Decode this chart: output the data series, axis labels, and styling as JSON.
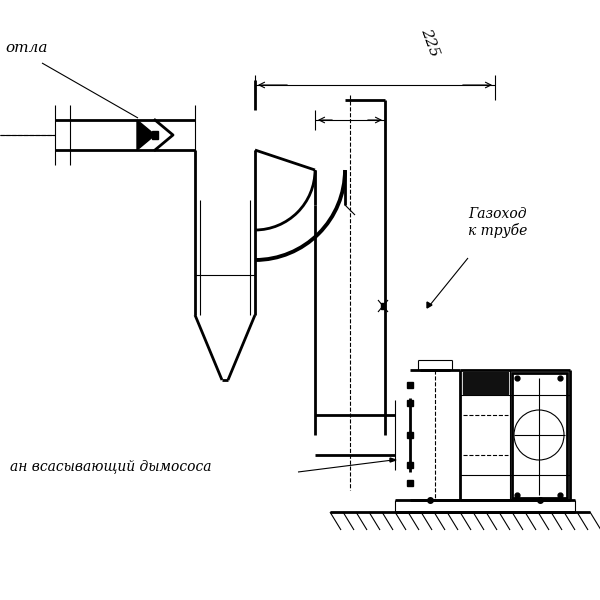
{
  "bg_color": "#ffffff",
  "line_color": "#000000",
  "thick_lw": 2.0,
  "thin_lw": 0.8,
  "dashed_lw": 0.8,
  "label_kotla": "отла",
  "label_gazokhod": "Газоход\nк трубе",
  "label_vsan": "ан всасывающий дымососа",
  "dimension_225": "225",
  "figsize": [
    6.0,
    6.0
  ],
  "dpi": 100
}
